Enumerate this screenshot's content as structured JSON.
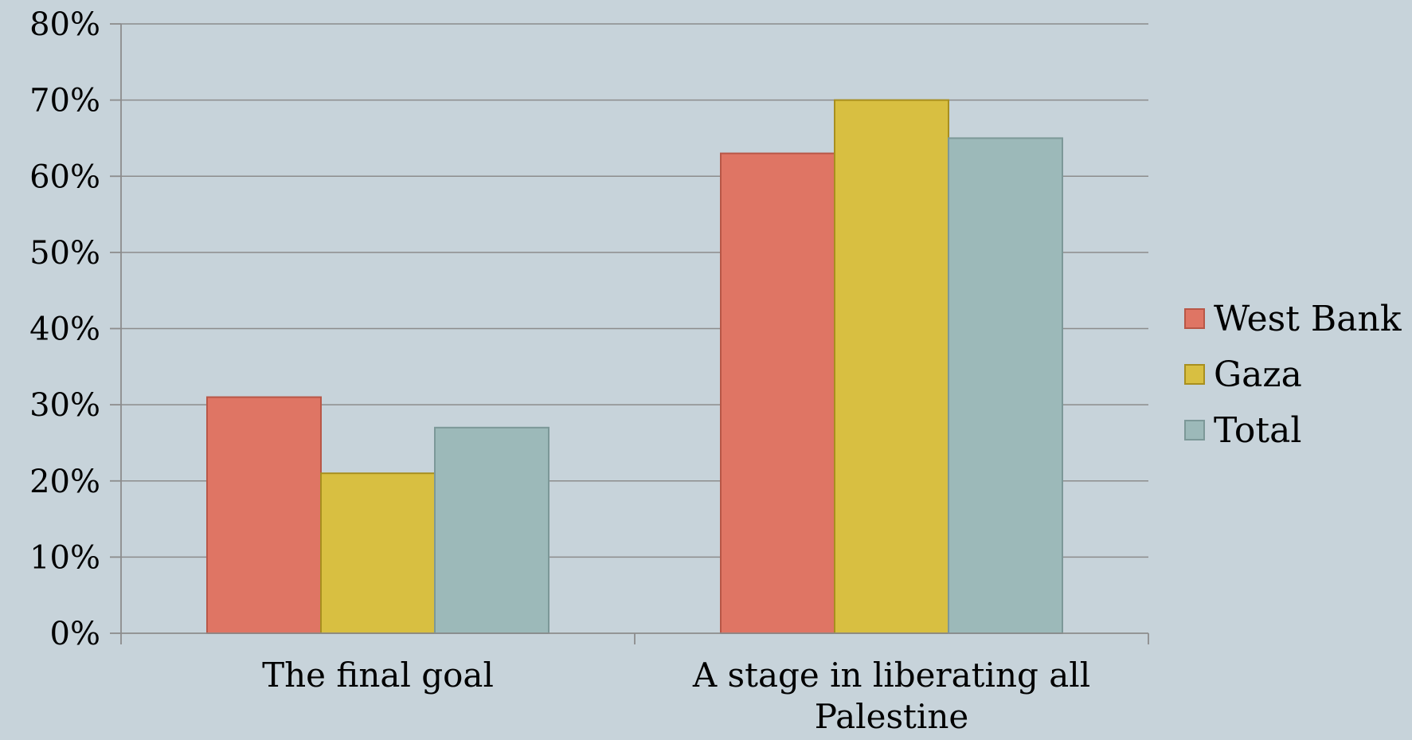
{
  "chart_data": {
    "type": "bar",
    "categories": [
      "The final goal",
      "A stage in liberating all Palestine"
    ],
    "series": [
      {
        "name": "West Bank",
        "values": [
          31,
          63
        ],
        "color": "#df7564",
        "stroke": "#b85747"
      },
      {
        "name": "Gaza",
        "values": [
          21,
          70
        ],
        "color": "#d8bf41",
        "stroke": "#a88f1f"
      },
      {
        "name": "Total",
        "values": [
          27,
          65
        ],
        "color": "#9cb9b9",
        "stroke": "#7c9898"
      }
    ],
    "ylim": [
      0,
      80
    ],
    "yticks": [
      0,
      10,
      20,
      30,
      40,
      50,
      60,
      70,
      80
    ],
    "ytick_labels": [
      "0%",
      "10%",
      "20%",
      "30%",
      "40%",
      "50%",
      "60%",
      "70%",
      "80%"
    ],
    "grid": true,
    "legend_position": "right",
    "title": "",
    "xlabel": "",
    "ylabel": ""
  }
}
